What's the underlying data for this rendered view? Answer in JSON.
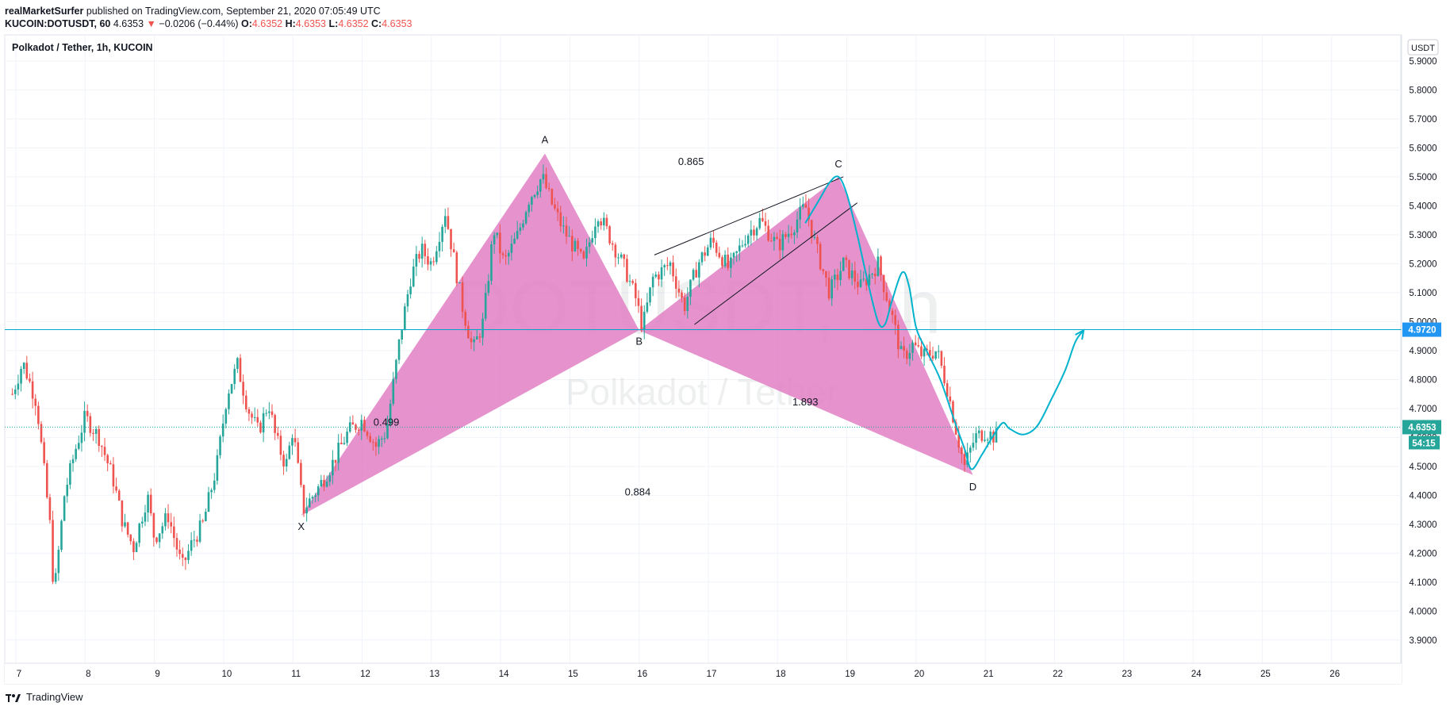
{
  "header": {
    "publisher": "realMarketSurfer",
    "published_text": "published on TradingView.com, September 21, 2020 07:05:49 UTC",
    "symbol": "KUCOIN:DOTUSDT, 60",
    "last": "4.6353",
    "change": "−0.0206 (−0.44%)",
    "o_label": "O:",
    "o": "4.6352",
    "h_label": "H:",
    "h": "4.6353",
    "l_label": "L:",
    "l": "4.6352",
    "c_label": "C:",
    "c": "4.6353"
  },
  "pane_title": "Polkadot / Tether, 1h, KUCOIN",
  "currency_badge": "USDT",
  "watermark": {
    "symbol": "DOTUSDT, 1h",
    "name": "Polkadot / Tether"
  },
  "footer": {
    "brand": "TradingView"
  },
  "colors": {
    "up": "#26a69a",
    "down": "#ef5350",
    "pattern_fill": "#e17fc4",
    "level_line": "#00a5c9",
    "projection": "#00b3cc",
    "price_tag": "#26a69a",
    "level_tag": "#2196f3"
  },
  "chart_data": {
    "type": "candlestick",
    "interval": "1h",
    "ylim": [
      3.82,
      5.99
    ],
    "y_ticks": [
      "5.9000",
      "5.8000",
      "5.7000",
      "5.6000",
      "5.5000",
      "5.4000",
      "5.3000",
      "5.2000",
      "5.1000",
      "5.0000",
      "4.9000",
      "4.8000",
      "4.7000",
      "4.6000",
      "4.5000",
      "4.4000",
      "4.3000",
      "4.2000",
      "4.1000",
      "4.0000",
      "3.9000"
    ],
    "x_ticks": [
      "7",
      "8",
      "9",
      "10",
      "11",
      "12",
      "13",
      "14",
      "15",
      "16",
      "17",
      "18",
      "19",
      "20",
      "21",
      "22",
      "23",
      "24",
      "25",
      "26"
    ],
    "xlim": [
      6.92,
      26.98
    ],
    "price_path": [
      [
        6.95,
        4.75
      ],
      [
        7.1,
        4.86
      ],
      [
        7.3,
        4.72
      ],
      [
        7.5,
        4.28
      ],
      [
        7.55,
        4.05
      ],
      [
        7.7,
        4.4
      ],
      [
        7.85,
        4.55
      ],
      [
        8.0,
        4.67
      ],
      [
        8.2,
        4.6
      ],
      [
        8.4,
        4.46
      ],
      [
        8.55,
        4.3
      ],
      [
        8.7,
        4.22
      ],
      [
        8.9,
        4.4
      ],
      [
        9.0,
        4.25
      ],
      [
        9.2,
        4.33
      ],
      [
        9.4,
        4.15
      ],
      [
        9.55,
        4.24
      ],
      [
        9.7,
        4.3
      ],
      [
        9.9,
        4.5
      ],
      [
        10.05,
        4.75
      ],
      [
        10.2,
        4.85
      ],
      [
        10.35,
        4.7
      ],
      [
        10.5,
        4.62
      ],
      [
        10.65,
        4.72
      ],
      [
        10.75,
        4.6
      ],
      [
        10.9,
        4.5
      ],
      [
        11.0,
        4.63
      ],
      [
        11.15,
        4.35
      ],
      [
        11.35,
        4.42
      ],
      [
        11.55,
        4.5
      ],
      [
        11.8,
        4.62
      ],
      [
        12.0,
        4.66
      ],
      [
        12.2,
        4.57
      ],
      [
        12.35,
        4.62
      ],
      [
        12.55,
        4.95
      ],
      [
        12.7,
        5.15
      ],
      [
        12.85,
        5.25
      ],
      [
        13.0,
        5.2
      ],
      [
        13.2,
        5.38
      ],
      [
        13.3,
        5.25
      ],
      [
        13.45,
        5.05
      ],
      [
        13.6,
        4.9
      ],
      [
        13.75,
        5.0
      ],
      [
        13.9,
        5.32
      ],
      [
        14.05,
        5.2
      ],
      [
        14.25,
        5.3
      ],
      [
        14.4,
        5.42
      ],
      [
        14.6,
        5.5
      ],
      [
        14.75,
        5.4
      ],
      [
        14.9,
        5.32
      ],
      [
        15.05,
        5.26
      ],
      [
        15.2,
        5.2
      ],
      [
        15.4,
        5.38
      ],
      [
        15.6,
        5.28
      ],
      [
        15.8,
        5.18
      ],
      [
        15.95,
        5.08
      ],
      [
        16.05,
        4.98
      ],
      [
        16.2,
        5.15
      ],
      [
        16.45,
        5.2
      ],
      [
        16.65,
        5.05
      ],
      [
        16.85,
        5.2
      ],
      [
        17.05,
        5.28
      ],
      [
        17.3,
        5.18
      ],
      [
        17.55,
        5.3
      ],
      [
        17.75,
        5.35
      ],
      [
        18.0,
        5.26
      ],
      [
        18.2,
        5.32
      ],
      [
        18.4,
        5.4
      ],
      [
        18.55,
        5.26
      ],
      [
        18.75,
        5.1
      ],
      [
        18.95,
        5.2
      ],
      [
        19.2,
        5.12
      ],
      [
        19.45,
        5.2
      ],
      [
        19.65,
        5.02
      ],
      [
        19.8,
        4.87
      ],
      [
        19.95,
        4.92
      ],
      [
        20.1,
        4.88
      ],
      [
        20.3,
        4.9
      ],
      [
        20.45,
        4.77
      ],
      [
        20.6,
        4.6
      ],
      [
        20.7,
        4.5
      ],
      [
        20.85,
        4.6
      ],
      [
        21.0,
        4.62
      ],
      [
        21.15,
        4.6
      ],
      [
        21.2,
        4.6353
      ]
    ],
    "harmonic_pattern": {
      "points": [
        {
          "label": "X",
          "date": 11.12,
          "price": 4.33
        },
        {
          "label": "A",
          "date": 14.64,
          "price": 5.58
        },
        {
          "label": "B",
          "date": 16.0,
          "price": 4.97
        },
        {
          "label": "C",
          "date": 18.88,
          "price": 5.5
        },
        {
          "label": "D",
          "date": 20.82,
          "price": 4.47
        }
      ],
      "ratios": [
        {
          "text": "0.499",
          "date": 12.35,
          "price": 4.64
        },
        {
          "text": "0.865",
          "date": 16.75,
          "price": 5.54
        },
        {
          "text": "1.893",
          "date": 18.4,
          "price": 4.71
        },
        {
          "text": "0.884",
          "date": 15.98,
          "price": 4.4
        }
      ]
    },
    "wedge_lines": [
      {
        "from": [
          16.22,
          5.23
        ],
        "to": [
          18.95,
          5.5
        ]
      },
      {
        "from": [
          16.8,
          4.99
        ],
        "to": [
          19.15,
          5.41
        ]
      }
    ],
    "level_line": {
      "price": 4.972,
      "label": "4.9720"
    },
    "last_price": {
      "price": 4.6353,
      "label": "4.6353",
      "countdown": "54:15"
    },
    "projection_path": [
      [
        18.4,
        5.34
      ],
      [
        18.6,
        5.42
      ],
      [
        18.75,
        5.48
      ],
      [
        18.88,
        5.5
      ],
      [
        19.0,
        5.44
      ],
      [
        19.15,
        5.3
      ],
      [
        19.3,
        5.14
      ],
      [
        19.45,
        5.0
      ],
      [
        19.55,
        4.99
      ],
      [
        19.65,
        5.07
      ],
      [
        19.8,
        5.17
      ],
      [
        19.9,
        5.12
      ],
      [
        20.0,
        4.98
      ],
      [
        20.15,
        4.9
      ],
      [
        20.35,
        4.8
      ],
      [
        20.55,
        4.66
      ],
      [
        20.7,
        4.56
      ],
      [
        20.8,
        4.49
      ],
      [
        20.95,
        4.54
      ],
      [
        21.1,
        4.6
      ],
      [
        21.25,
        4.65
      ],
      [
        21.35,
        4.63
      ],
      [
        21.55,
        4.61
      ],
      [
        21.75,
        4.64
      ],
      [
        21.95,
        4.73
      ],
      [
        22.15,
        4.83
      ],
      [
        22.3,
        4.93
      ],
      [
        22.42,
        4.97
      ]
    ]
  }
}
